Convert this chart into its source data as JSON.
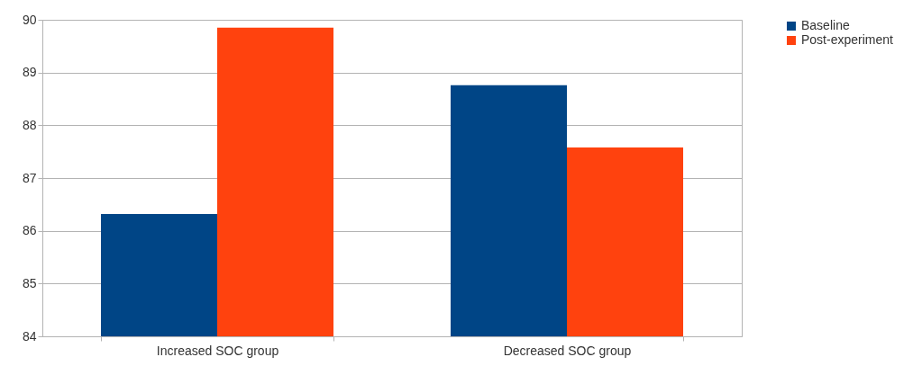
{
  "chart_data": {
    "type": "bar",
    "categories": [
      "Increased SOC group",
      "Decreased SOC group"
    ],
    "series": [
      {
        "name": "Baseline",
        "color": "#004586",
        "values": [
          86.32,
          88.76
        ]
      },
      {
        "name": "Post-experiment",
        "color": "#ff420e",
        "values": [
          89.85,
          87.58
        ]
      }
    ],
    "ylim": [
      84,
      90
    ],
    "yticks": [
      84,
      85,
      86,
      87,
      88,
      89,
      90
    ],
    "grid": true,
    "legend": "right"
  }
}
